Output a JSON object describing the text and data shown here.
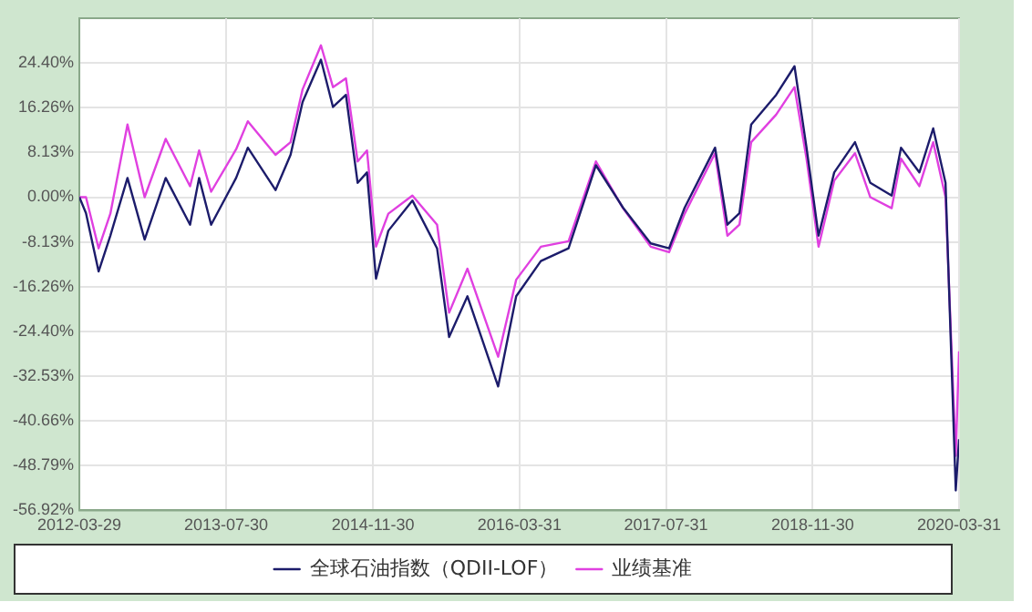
{
  "chart_data": {
    "type": "line",
    "x": [
      "2012-03-29",
      "2012-04-20",
      "2012-06-01",
      "2012-07-10",
      "2012-09-05",
      "2012-11-01",
      "2013-01-10",
      "2013-04-01",
      "2013-05-01",
      "2013-06-10",
      "2013-09-01",
      "2013-10-10",
      "2014-01-10",
      "2014-03-01",
      "2014-04-10",
      "2014-06-10",
      "2014-07-20",
      "2014-09-01",
      "2014-10-10",
      "2014-11-10",
      "2014-12-10",
      "2015-01-20",
      "2015-04-10",
      "2015-07-01",
      "2015-08-10",
      "2015-10-10",
      "2016-01-20",
      "2016-03-20",
      "2016-06-10",
      "2016-09-10",
      "2016-12-10",
      "2017-03-10",
      "2017-06-10",
      "2017-08-10",
      "2017-10-01",
      "2018-01-10",
      "2018-02-20",
      "2018-04-01",
      "2018-05-10",
      "2018-08-01",
      "2018-10-01",
      "2018-11-10",
      "2018-12-20",
      "2019-02-10",
      "2019-04-20",
      "2019-06-10",
      "2019-08-20",
      "2019-09-20",
      "2019-11-20",
      "2020-01-05",
      "2020-02-15",
      "2020-03-20",
      "2020-03-31"
    ],
    "series": [
      {
        "name": "全球石油指数（QDII-LOF）",
        "color": "#1c1c6b",
        "values": [
          0,
          -2.9,
          -13.5,
          -7,
          3.5,
          -7.7,
          3.5,
          -5,
          3.5,
          -5,
          3.5,
          9,
          1.3,
          7.7,
          17.3,
          25,
          16.4,
          18.6,
          2.6,
          4.5,
          -14.8,
          -6.1,
          -0.6,
          -9.3,
          -25.4,
          -18,
          -34.4,
          -18,
          -11.6,
          -9.3,
          5.8,
          -1.9,
          -8.4,
          -9.3,
          -1.9,
          9,
          -5,
          -2.9,
          13.2,
          18.6,
          23.8,
          9,
          -7,
          4.5,
          10,
          2.6,
          0.3,
          9,
          4.5,
          12.5,
          2.6,
          -53.3,
          -44
        ]
      },
      {
        "name": "业绩基准",
        "color": "#e040e0",
        "values": [
          0,
          0,
          -9.3,
          -3,
          13.2,
          0,
          10.6,
          2,
          8.5,
          1,
          8.7,
          13.8,
          7.7,
          10,
          19.6,
          27.6,
          20,
          21.6,
          6.5,
          8.5,
          -9,
          -3,
          0.3,
          -5,
          -21,
          -13,
          -29,
          -15,
          -9,
          -8,
          6.5,
          -2,
          -9,
          -10,
          -3,
          8,
          -7,
          -5,
          10,
          15,
          20,
          7,
          -9,
          3,
          8,
          0,
          -2,
          7,
          2,
          10,
          0,
          -47,
          -28
        ]
      }
    ],
    "xlim": [
      "2012-03-29",
      "2020-03-31"
    ],
    "xticks": [
      "2012-03-29",
      "2013-07-30",
      "2014-11-30",
      "2016-03-31",
      "2017-07-31",
      "2018-11-30",
      "2020-03-31"
    ],
    "ylim": [
      -56.92,
      32.53
    ],
    "yticks": [
      {
        "value": -56.92,
        "label": "-56.92%"
      },
      {
        "value": -48.79,
        "label": "-48.79%"
      },
      {
        "value": -40.66,
        "label": "-40.66%"
      },
      {
        "value": -32.53,
        "label": "-32.53%"
      },
      {
        "value": -24.4,
        "label": "-24.40%"
      },
      {
        "value": -16.26,
        "label": "-16.26%"
      },
      {
        "value": -8.13,
        "label": "-8.13%"
      },
      {
        "value": 0,
        "label": "0.00%"
      },
      {
        "value": 8.13,
        "label": "8.13%"
      },
      {
        "value": 16.26,
        "label": "16.26%"
      },
      {
        "value": 24.4,
        "label": "24.40%"
      }
    ],
    "grid": true,
    "legend": "bottom",
    "marker": "none",
    "line_style": "solid"
  }
}
